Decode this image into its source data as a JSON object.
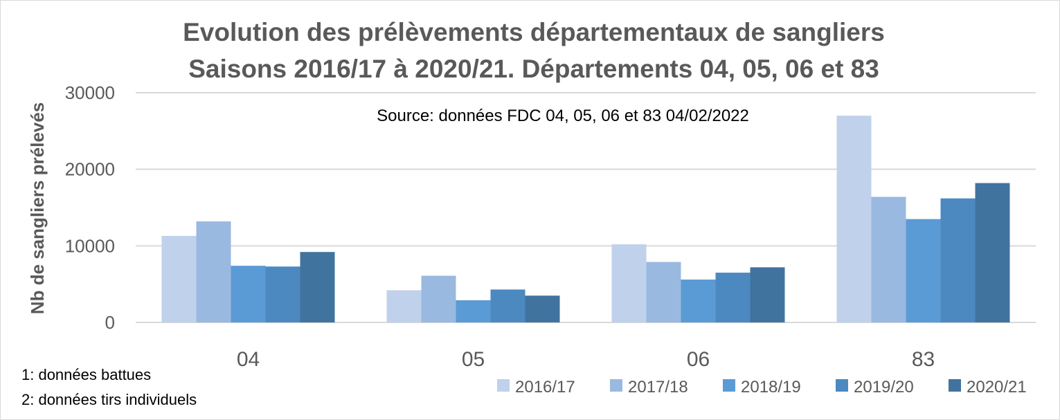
{
  "chart_data": {
    "type": "bar",
    "title_line1": "Evolution des prélèvements départementaux de sangliers",
    "title_line2": "Saisons 2016/17 à 2020/21. Départements 04, 05, 06 et 83",
    "subtitle": "Source: données FDC 04, 05, 06 et 83 04/02/2022",
    "ylabel": "Nb de sangliers prélevés",
    "xlabel": "",
    "ylim": [
      0,
      30000
    ],
    "yticks": [
      0,
      10000,
      20000,
      30000
    ],
    "yticklabels": [
      "0",
      "10000",
      "20000",
      "30000"
    ],
    "grid": true,
    "legend_position": "bottom-right",
    "categories": [
      "04",
      "05",
      "06",
      "83"
    ],
    "series": [
      {
        "name": "2016/17",
        "color": "#BFD1EB",
        "values": [
          11300,
          4200,
          10200,
          27000
        ]
      },
      {
        "name": "2017/18",
        "color": "#9AB9E0",
        "values": [
          13200,
          6100,
          7900,
          16400
        ]
      },
      {
        "name": "2018/19",
        "color": "#5B9BD5",
        "values": [
          7400,
          2900,
          5600,
          13500
        ]
      },
      {
        "name": "2019/20",
        "color": "#4C89C1",
        "values": [
          7300,
          4300,
          6500,
          16200
        ]
      },
      {
        "name": "2020/21",
        "color": "#41739F",
        "values": [
          9200,
          3500,
          7200,
          18200
        ]
      }
    ],
    "notes": [
      "1: données battues",
      "2: données tirs individuels"
    ]
  }
}
